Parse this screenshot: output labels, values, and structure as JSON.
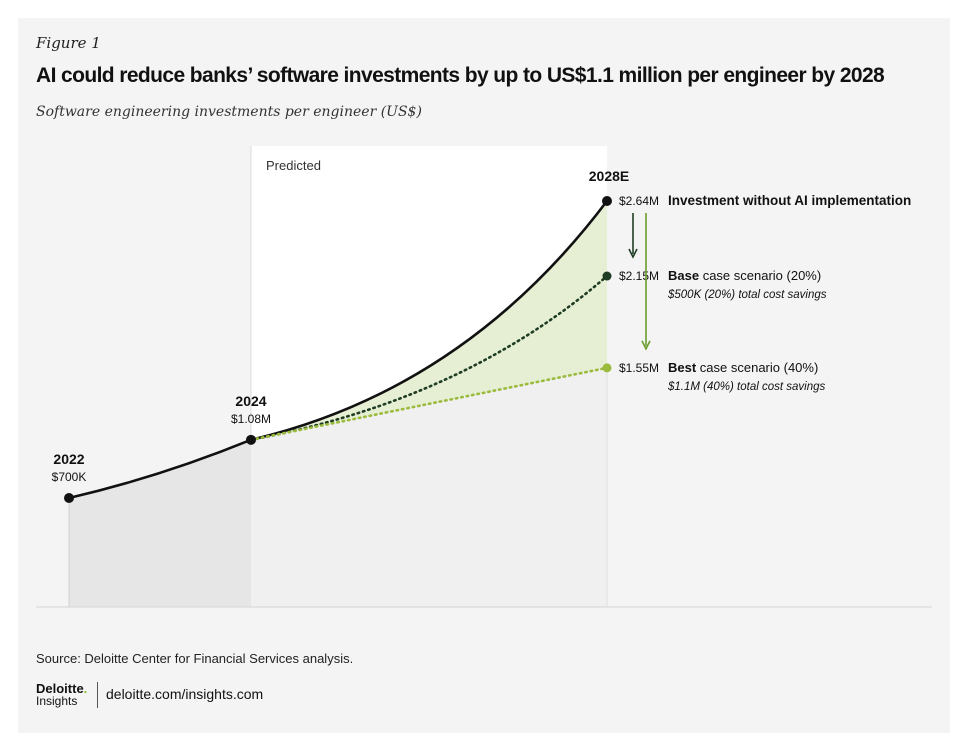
{
  "figure": {
    "label": "Figure 1",
    "title": "AI could reduce banks’ software investments by up to US$1.1 million per engineer by 2028",
    "subtitle": "Software engineering investments per engineer (US$)"
  },
  "chart_data": {
    "type": "line",
    "unit": "US$ (millions)",
    "predicted_label": "Predicted",
    "colors": {
      "without_ai": "#111111",
      "base": "#1f3d24",
      "best": "#9bbb3c",
      "band": "#e6efd4",
      "historic_fill": "#e6e6e6",
      "predicted_fill": "#f0f0f0",
      "predicted_region": "#ffffff",
      "arrow_base": "#1f3d24",
      "arrow_best": "#6b9c2c"
    },
    "points": [
      {
        "year": "2022",
        "value": 0.7,
        "label": "$700K"
      },
      {
        "year": "2024",
        "value": 1.08,
        "label": "$1.08M"
      }
    ],
    "end_year": "2028E",
    "series": [
      {
        "name": "Investment without AI implementation",
        "label_bold": "Investment without AI implementation",
        "label_rest": "",
        "note": "",
        "end_value": 2.64,
        "end_label": "$2.64M"
      },
      {
        "name": "Base case scenario (20%)",
        "label_bold": "Base",
        "label_rest": " case scenario (20%)",
        "note": "$500K (20%) total cost savings",
        "end_value": 2.15,
        "end_label": "$2.15M"
      },
      {
        "name": "Best case scenario (40%)",
        "label_bold": "Best",
        "label_rest": " case scenario (40%)",
        "note": "$1.1M (40%) total cost savings",
        "end_value": 1.55,
        "end_label": "$1.55M"
      }
    ]
  },
  "footer": {
    "source": "Source: Deloitte Center for Financial Services analysis.",
    "logo_line1": "Deloitte",
    "logo_dot": ".",
    "logo_line2": "Insights",
    "site": "deloitte.com/insights.com"
  }
}
